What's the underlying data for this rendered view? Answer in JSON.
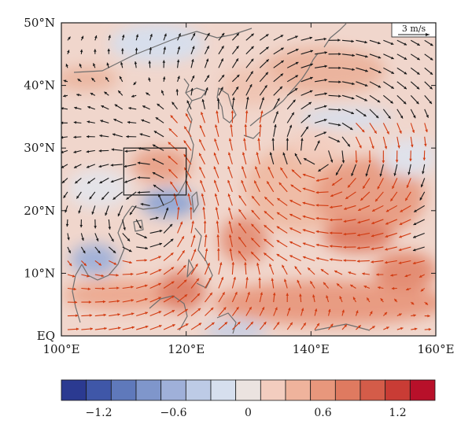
{
  "map": {
    "lon_range": [
      100,
      160
    ],
    "lat_range": [
      0,
      50
    ],
    "lon_ticks": [
      {
        "value": 100,
        "label": "100°E"
      },
      {
        "value": 120,
        "label": "120°E"
      },
      {
        "value": 140,
        "label": "140°E"
      },
      {
        "value": 160,
        "label": "160°E"
      }
    ],
    "lat_ticks": [
      {
        "value": 50,
        "label": "50°N"
      },
      {
        "value": 40,
        "label": "40°N"
      },
      {
        "value": 30,
        "label": "30°N"
      },
      {
        "value": 20,
        "label": "20°N"
      },
      {
        "value": 10,
        "label": "10°N"
      },
      {
        "value": 0,
        "label": "EQ"
      }
    ],
    "region_box": {
      "lon_min": 110,
      "lon_max": 120,
      "lat_min": 22.5,
      "lat_max": 30
    },
    "reference_vector": {
      "label": "3 m/s",
      "speed": 3
    },
    "vector_colors": {
      "significant": "#d23a10",
      "other": "#1a1a1a"
    },
    "coastline_color": "#6e6e6e"
  },
  "colorbar": {
    "colors": [
      "#2b3a91",
      "#3f57a8",
      "#5f79bb",
      "#7f96cb",
      "#9fb0d9",
      "#bdcbe6",
      "#d6dfee",
      "#ebe3e0",
      "#f3cdbf",
      "#efb39c",
      "#e8977c",
      "#df7a60",
      "#d45c49",
      "#c93c35",
      "#b8102a"
    ],
    "bin_edges": [
      -1.5,
      -1.3,
      -1.1,
      -0.9,
      -0.7,
      -0.5,
      -0.3,
      -0.1,
      0.1,
      0.3,
      0.5,
      0.7,
      0.9,
      1.1,
      1.3,
      1.5
    ],
    "ticks": [
      {
        "value": -1.2,
        "label": "−1.2"
      },
      {
        "value": -0.6,
        "label": "−0.6"
      },
      {
        "value": 0,
        "label": "0"
      },
      {
        "value": 0.6,
        "label": "0.6"
      },
      {
        "value": 1.2,
        "label": "1.2"
      }
    ]
  }
}
